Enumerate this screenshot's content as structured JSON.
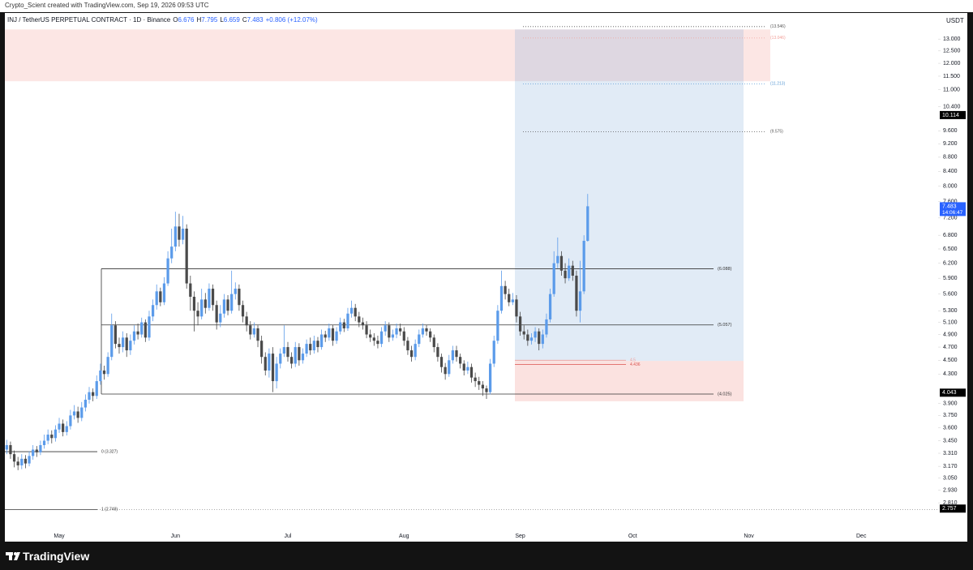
{
  "header": {
    "credit": "Crypto_Scient created with TradingView.com, Sep 19, 2026 09:53 UTC"
  },
  "footer": {
    "brand": "TradingView"
  },
  "chart_data": {
    "type": "candlestick",
    "title": "INJ / TetherUS PERPETUAL CONTRACT · 1D · Binance",
    "ohlc": [
      {
        "label": "O",
        "value": 6.676
      },
      {
        "label": "H",
        "value": 7.795
      },
      {
        "label": "L",
        "value": 6.659
      },
      {
        "label": "C",
        "value": 7.483
      }
    ],
    "change": "+0.806 (+12.07%)",
    "currency": "USDT",
    "log_scale": true,
    "up_color": "#5b9bea",
    "down_color": "#4a4a4a",
    "ylim": [
      2.472,
      14.17
    ],
    "yticks": [
      {
        "value": 13,
        "label": "13.000"
      },
      {
        "value": 12.5,
        "label": "12.500"
      },
      {
        "value": 12,
        "label": "12.000"
      },
      {
        "value": 11.5,
        "label": "11.500"
      },
      {
        "value": 11,
        "label": "11.000"
      },
      {
        "value": 10.4,
        "label": "10.400"
      },
      {
        "value": 9.6,
        "label": "9.600"
      },
      {
        "value": 9.2,
        "label": "9.200"
      },
      {
        "value": 8.8,
        "label": "8.800"
      },
      {
        "value": 8.4,
        "label": "8.400"
      },
      {
        "value": 8,
        "label": "8.000"
      },
      {
        "value": 7.6,
        "label": "7.600"
      },
      {
        "value": 7.2,
        "label": "7.200"
      },
      {
        "value": 6.8,
        "label": "6.800"
      },
      {
        "value": 6.5,
        "label": "6.500"
      },
      {
        "value": 6.2,
        "label": "6.200"
      },
      {
        "value": 5.9,
        "label": "5.900"
      },
      {
        "value": 5.6,
        "label": "5.600"
      },
      {
        "value": 5.3,
        "label": "5.300"
      },
      {
        "value": 5.1,
        "label": "5.100"
      },
      {
        "value": 4.9,
        "label": "4.900"
      },
      {
        "value": 4.7,
        "label": "4.700"
      },
      {
        "value": 4.5,
        "label": "4.500"
      },
      {
        "value": 4.3,
        "label": "4.300"
      },
      {
        "value": 3.9,
        "label": "3.900"
      },
      {
        "value": 3.75,
        "label": "3.750"
      },
      {
        "value": 3.6,
        "label": "3.600"
      },
      {
        "value": 3.45,
        "label": "3.450"
      },
      {
        "value": 3.31,
        "label": "3.310"
      },
      {
        "value": 3.17,
        "label": "3.170"
      },
      {
        "value": 3.05,
        "label": "3.050"
      },
      {
        "value": 2.93,
        "label": "2.930"
      },
      {
        "value": 2.81,
        "label": "2.810"
      }
    ],
    "price_labels": [
      {
        "value": 10.114,
        "color": "#000000"
      },
      {
        "value": 7.483,
        "color": "#2962ff",
        "countdown": "14:06:47"
      },
      {
        "value": 4.043,
        "color": "#000000"
      },
      {
        "value": 2.757,
        "color": "#000000"
      }
    ],
    "range_levels": [
      {
        "value": 6.088,
        "label": "(6.088)"
      },
      {
        "value": 5.057,
        "label": "(5.057)"
      },
      {
        "value": 4.025,
        "label": "(4.025)"
      }
    ],
    "fib_levels": [
      {
        "value": 13.546,
        "label": "(13.546)",
        "color": "#555555"
      },
      {
        "value": 13.046,
        "label": "(13.046)",
        "color": "#f2a09a"
      },
      {
        "value": 11.213,
        "label": "(11.213)",
        "color": "#5b9bd5"
      },
      {
        "value": 9.575,
        "label": "(9.575)",
        "color": "#555555"
      }
    ],
    "swing_levels": [
      {
        "value": 3.327,
        "label": "0 (3.327)"
      },
      {
        "value": 2.749,
        "label": "1 (2.749)"
      }
    ],
    "entry_levels": [
      {
        "value": 4.5,
        "label": "4.5",
        "color": "#f2a09a"
      },
      {
        "value": 4.436,
        "label": "4.436",
        "color": "#d9534f"
      }
    ],
    "supply_zone": [
      11.31,
      13.42
    ],
    "position": {
      "target": 13.42,
      "entry": 4.49,
      "stop": 3.93
    },
    "categories": [
      null,
      null,
      null,
      null,
      null,
      null,
      null,
      null,
      null,
      null,
      null,
      null,
      null,
      null,
      "May",
      null,
      null,
      null,
      null,
      null,
      null,
      null,
      null,
      null,
      null,
      null,
      null,
      null,
      null,
      null,
      null,
      null,
      null,
      null,
      null,
      null,
      null,
      null,
      null,
      null,
      null,
      null,
      null,
      null,
      null,
      "Jun",
      null,
      null,
      null,
      null,
      null,
      null,
      null,
      null,
      null,
      null,
      null,
      null,
      null,
      null,
      null,
      null,
      null,
      null,
      null,
      null,
      null,
      null,
      null,
      null,
      null,
      null,
      null,
      null,
      null,
      "Jul",
      null,
      null,
      null,
      null,
      null,
      null,
      null,
      null,
      null,
      null,
      null,
      null,
      null,
      null,
      null,
      null,
      null,
      null,
      null,
      null,
      null,
      null,
      null,
      null,
      null,
      null,
      null,
      null,
      null,
      null,
      "Aug",
      null,
      null,
      null,
      null,
      null,
      null,
      null,
      null,
      null,
      null,
      null,
      null,
      null,
      null,
      null,
      null,
      null,
      null,
      null,
      null,
      null,
      null,
      null,
      null,
      null,
      null,
      null,
      null,
      null,
      null,
      "Sep",
      null,
      null,
      null,
      null,
      null,
      null,
      null,
      null,
      null,
      null,
      null,
      null,
      null,
      null,
      null,
      null,
      null,
      null,
      null,
      null,
      null,
      null,
      null,
      null,
      null,
      null,
      null,
      null,
      null,
      "Oct",
      null,
      null,
      null,
      null,
      null,
      null,
      null,
      null,
      null,
      null,
      null,
      null,
      null,
      null,
      null,
      null,
      null,
      null,
      null,
      null,
      null,
      null,
      null,
      null,
      null,
      null,
      null,
      null,
      null,
      null,
      "Nov",
      null,
      null,
      null,
      null,
      null,
      null,
      null,
      null,
      null,
      null,
      null,
      null,
      null,
      null,
      null,
      null,
      null,
      null,
      null,
      null,
      null,
      null,
      null,
      null,
      null,
      null,
      null,
      null,
      null,
      "Dec",
      null,
      null,
      null,
      null,
      null,
      null,
      null,
      null,
      null,
      null,
      null,
      null,
      null,
      null,
      null,
      null,
      null,
      null,
      null,
      null
    ],
    "values": [
      [
        3.35,
        3.46,
        3.3,
        3.4
      ],
      [
        3.4,
        3.44,
        3.25,
        3.3
      ],
      [
        3.3,
        3.34,
        3.16,
        3.22
      ],
      [
        3.22,
        3.27,
        3.13,
        3.18
      ],
      [
        3.18,
        3.3,
        3.14,
        3.25
      ],
      [
        3.25,
        3.29,
        3.15,
        3.2
      ],
      [
        3.2,
        3.33,
        3.17,
        3.28
      ],
      [
        3.28,
        3.4,
        3.24,
        3.35
      ],
      [
        3.35,
        3.39,
        3.27,
        3.32
      ],
      [
        3.32,
        3.45,
        3.29,
        3.4
      ],
      [
        3.4,
        3.52,
        3.36,
        3.45
      ],
      [
        3.45,
        3.58,
        3.41,
        3.52
      ],
      [
        3.52,
        3.57,
        3.42,
        3.48
      ],
      [
        3.48,
        3.63,
        3.44,
        3.58
      ],
      [
        3.58,
        3.72,
        3.54,
        3.65
      ],
      [
        3.65,
        3.7,
        3.5,
        3.55
      ],
      [
        3.55,
        3.68,
        3.51,
        3.62
      ],
      [
        3.62,
        3.82,
        3.58,
        3.75
      ],
      [
        3.75,
        3.88,
        3.7,
        3.8
      ],
      [
        3.8,
        3.86,
        3.66,
        3.72
      ],
      [
        3.72,
        3.92,
        3.68,
        3.85
      ],
      [
        3.85,
        4.02,
        3.8,
        3.95
      ],
      [
        3.95,
        4.12,
        3.9,
        4.05
      ],
      [
        4.05,
        4.1,
        3.93,
        4.0
      ],
      [
        4.0,
        4.28,
        3.96,
        4.2
      ],
      [
        4.2,
        4.45,
        4.15,
        4.35
      ],
      [
        4.35,
        4.42,
        4.22,
        4.3
      ],
      [
        4.3,
        4.62,
        4.26,
        4.55
      ],
      [
        4.55,
        5.25,
        4.5,
        5.05
      ],
      [
        5.05,
        5.12,
        4.68,
        4.75
      ],
      [
        4.75,
        4.85,
        4.6,
        4.7
      ],
      [
        4.7,
        4.95,
        4.62,
        4.85
      ],
      [
        4.85,
        4.92,
        4.55,
        4.65
      ],
      [
        4.65,
        4.9,
        4.58,
        4.8
      ],
      [
        4.8,
        5.05,
        4.74,
        4.95
      ],
      [
        4.95,
        5.08,
        4.82,
        4.9
      ],
      [
        4.9,
        5.18,
        4.85,
        5.1
      ],
      [
        5.1,
        5.15,
        4.78,
        4.85
      ],
      [
        4.85,
        5.3,
        4.8,
        5.2
      ],
      [
        5.2,
        5.5,
        5.12,
        5.4
      ],
      [
        5.4,
        5.78,
        5.32,
        5.65
      ],
      [
        5.65,
        5.72,
        5.38,
        5.45
      ],
      [
        5.45,
        5.92,
        5.4,
        5.8
      ],
      [
        5.8,
        6.45,
        5.75,
        6.3
      ],
      [
        6.3,
        6.95,
        6.2,
        6.55
      ],
      [
        6.55,
        7.35,
        6.45,
        7.0
      ],
      [
        7.0,
        7.3,
        6.55,
        6.7
      ],
      [
        6.7,
        7.25,
        6.6,
        6.95
      ],
      [
        6.95,
        7.05,
        5.7,
        5.8
      ],
      [
        5.8,
        5.95,
        5.3,
        5.55
      ],
      [
        5.55,
        5.65,
        4.95,
        5.3
      ],
      [
        5.3,
        5.45,
        5.05,
        5.2
      ],
      [
        5.2,
        5.7,
        5.15,
        5.5
      ],
      [
        5.5,
        5.62,
        5.25,
        5.35
      ],
      [
        5.35,
        5.8,
        5.3,
        5.7
      ],
      [
        5.7,
        5.78,
        5.3,
        5.4
      ],
      [
        5.4,
        5.48,
        4.98,
        5.1
      ],
      [
        5.1,
        5.4,
        5.02,
        5.25
      ],
      [
        5.25,
        5.6,
        5.18,
        5.5
      ],
      [
        5.5,
        5.58,
        5.22,
        5.3
      ],
      [
        5.3,
        6.05,
        5.25,
        5.6
      ],
      [
        5.6,
        5.82,
        5.5,
        5.7
      ],
      [
        5.7,
        5.78,
        5.3,
        5.4
      ],
      [
        5.4,
        5.48,
        5.1,
        5.2
      ],
      [
        5.2,
        5.28,
        4.95,
        5.05
      ],
      [
        5.05,
        5.12,
        4.82,
        4.9
      ],
      [
        4.9,
        5.1,
        4.85,
        5.0
      ],
      [
        5.0,
        5.05,
        4.7,
        4.8
      ],
      [
        4.8,
        4.88,
        4.45,
        4.55
      ],
      [
        4.55,
        4.62,
        4.28,
        4.35
      ],
      [
        4.35,
        4.68,
        4.25,
        4.6
      ],
      [
        4.6,
        4.7,
        4.05,
        4.2
      ],
      [
        4.2,
        4.55,
        4.1,
        4.45
      ],
      [
        4.45,
        4.68,
        4.38,
        4.6
      ],
      [
        4.6,
        5.05,
        4.55,
        4.7
      ],
      [
        4.7,
        4.78,
        4.48,
        4.55
      ],
      [
        4.55,
        4.62,
        4.38,
        4.45
      ],
      [
        4.45,
        4.78,
        4.4,
        4.7
      ],
      [
        4.7,
        4.76,
        4.42,
        4.5
      ],
      [
        4.5,
        4.68,
        4.45,
        4.6
      ],
      [
        4.6,
        4.82,
        4.55,
        4.75
      ],
      [
        4.75,
        4.85,
        4.58,
        4.65
      ],
      [
        4.65,
        4.88,
        4.6,
        4.8
      ],
      [
        4.8,
        4.86,
        4.62,
        4.7
      ],
      [
        4.7,
        4.98,
        4.66,
        4.9
      ],
      [
        4.9,
        4.96,
        4.78,
        4.85
      ],
      [
        4.85,
        5.08,
        4.8,
        5.0
      ],
      [
        5.0,
        5.06,
        4.72,
        4.8
      ],
      [
        4.8,
        5.02,
        4.75,
        4.95
      ],
      [
        4.95,
        5.18,
        4.9,
        5.1
      ],
      [
        5.1,
        5.16,
        4.94,
        5.0
      ],
      [
        5.0,
        5.35,
        4.96,
        5.25
      ],
      [
        5.25,
        5.48,
        5.18,
        5.35
      ],
      [
        5.35,
        5.42,
        5.12,
        5.2
      ],
      [
        5.2,
        5.28,
        5.02,
        5.1
      ],
      [
        5.1,
        5.18,
        4.98,
        5.05
      ],
      [
        5.05,
        5.12,
        4.84,
        4.9
      ],
      [
        4.9,
        4.98,
        4.78,
        4.85
      ],
      [
        4.85,
        4.92,
        4.72,
        4.8
      ],
      [
        4.8,
        4.88,
        4.68,
        4.75
      ],
      [
        4.75,
        5.02,
        4.7,
        4.95
      ],
      [
        4.95,
        5.12,
        4.88,
        5.05
      ],
      [
        5.05,
        5.1,
        4.78,
        4.85
      ],
      [
        4.85,
        4.98,
        4.8,
        4.9
      ],
      [
        4.9,
        5.08,
        4.84,
        5.0
      ],
      [
        5.0,
        5.08,
        4.88,
        4.95
      ],
      [
        4.95,
        5.02,
        4.72,
        4.8
      ],
      [
        4.8,
        4.86,
        4.58,
        4.65
      ],
      [
        4.65,
        4.72,
        4.48,
        4.55
      ],
      [
        4.55,
        4.82,
        4.5,
        4.75
      ],
      [
        4.75,
        4.98,
        4.7,
        4.9
      ],
      [
        4.9,
        5.08,
        4.85,
        5.0
      ],
      [
        5.0,
        5.06,
        4.88,
        4.95
      ],
      [
        4.95,
        5.0,
        4.78,
        4.85
      ],
      [
        4.85,
        4.9,
        4.62,
        4.7
      ],
      [
        4.7,
        4.76,
        4.48,
        4.55
      ],
      [
        4.55,
        4.6,
        4.32,
        4.4
      ],
      [
        4.4,
        4.46,
        4.22,
        4.3
      ],
      [
        4.3,
        4.58,
        4.26,
        4.5
      ],
      [
        4.5,
        4.72,
        4.45,
        4.65
      ],
      [
        4.65,
        4.72,
        4.48,
        4.55
      ],
      [
        4.55,
        4.6,
        4.38,
        4.45
      ],
      [
        4.45,
        4.5,
        4.28,
        4.35
      ],
      [
        4.35,
        4.48,
        4.3,
        4.4
      ],
      [
        4.4,
        4.45,
        4.18,
        4.25
      ],
      [
        4.25,
        4.32,
        4.12,
        4.2
      ],
      [
        4.2,
        4.26,
        4.08,
        4.15
      ],
      [
        4.15,
        4.2,
        4.0,
        4.1
      ],
      [
        4.1,
        4.14,
        3.96,
        4.05
      ],
      [
        4.05,
        4.52,
        4.02,
        4.45
      ],
      [
        4.45,
        4.88,
        4.4,
        4.8
      ],
      [
        4.8,
        5.4,
        4.75,
        5.3
      ],
      [
        5.3,
        6.05,
        5.25,
        5.75
      ],
      [
        5.75,
        5.85,
        5.5,
        5.6
      ],
      [
        5.6,
        5.7,
        5.38,
        5.45
      ],
      [
        5.45,
        5.62,
        5.4,
        5.5
      ],
      [
        5.5,
        5.58,
        5.1,
        5.2
      ],
      [
        5.2,
        5.28,
        4.88,
        4.95
      ],
      [
        4.95,
        5.05,
        4.82,
        4.9
      ],
      [
        4.9,
        4.98,
        4.72,
        4.8
      ],
      [
        4.8,
        4.92,
        4.74,
        4.85
      ],
      [
        4.85,
        5.02,
        4.78,
        4.95
      ],
      [
        4.95,
        5.0,
        4.65,
        4.75
      ],
      [
        4.75,
        4.98,
        4.68,
        4.9
      ],
      [
        4.9,
        5.25,
        4.85,
        5.15
      ],
      [
        5.15,
        5.7,
        5.1,
        5.6
      ],
      [
        5.6,
        6.45,
        5.55,
        6.2
      ],
      [
        6.2,
        6.75,
        6.1,
        6.35
      ],
      [
        6.35,
        6.45,
        5.95,
        6.05
      ],
      [
        6.05,
        6.2,
        5.8,
        5.9
      ],
      [
        5.9,
        6.3,
        5.85,
        6.15
      ],
      [
        6.15,
        6.25,
        5.85,
        5.95
      ],
      [
        5.95,
        6.05,
        5.2,
        5.3
      ],
      [
        5.3,
        6.25,
        5.1,
        5.65
      ],
      [
        5.65,
        6.8,
        5.6,
        6.676
      ],
      [
        6.676,
        7.795,
        6.659,
        7.483
      ],
      null,
      null,
      null,
      null,
      null,
      null,
      null,
      null,
      null,
      null,
      null,
      null,
      null,
      null,
      null,
      null,
      null,
      null,
      null,
      null,
      null,
      null,
      null,
      null,
      null,
      null,
      null,
      null,
      null,
      null,
      null,
      null,
      null,
      null,
      null,
      null,
      null,
      null,
      null,
      null,
      null,
      null,
      null,
      null,
      null,
      null,
      null,
      null,
      null,
      null,
      null,
      null,
      null,
      null,
      null,
      null,
      null,
      null,
      null,
      null,
      null,
      null,
      null,
      null,
      null,
      null,
      null,
      null,
      null,
      null,
      null,
      null,
      null,
      null,
      null,
      null,
      null,
      null,
      null,
      null,
      null,
      null,
      null,
      null,
      null,
      null,
      null,
      null,
      null,
      null,
      null,
      null,
      null
    ]
  }
}
